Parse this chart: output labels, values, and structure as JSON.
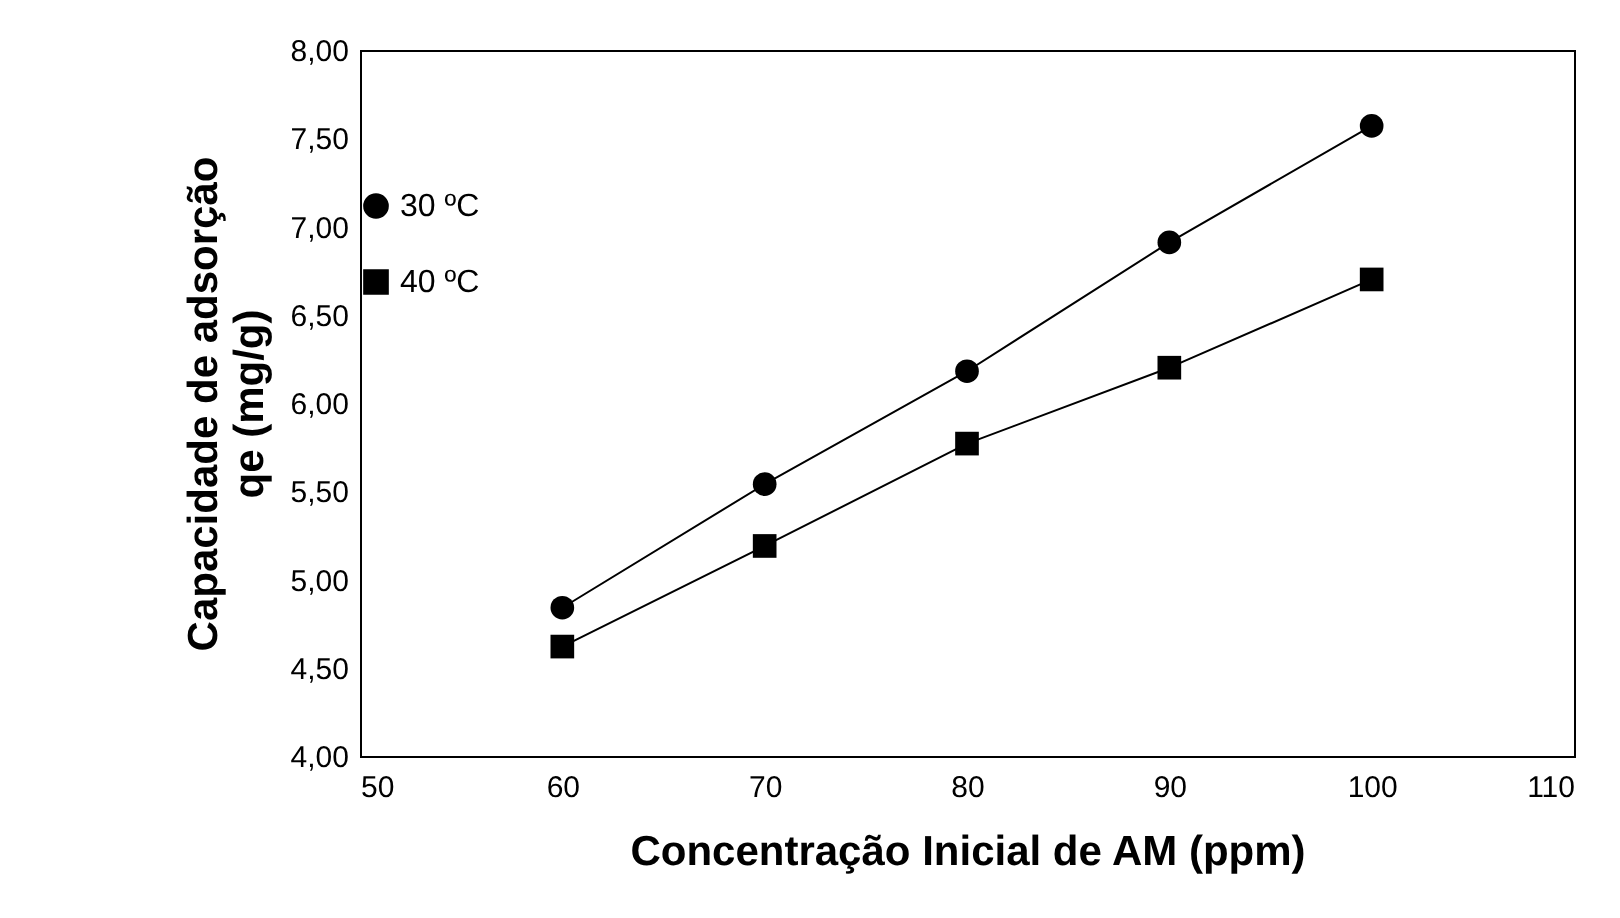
{
  "chart_data": {
    "type": "line",
    "xlabel": "Concentração Inicial de AM (ppm)",
    "ylabel": "Capacidade de adsorção\nqe (mg/g)",
    "x": [
      60,
      70,
      80,
      90,
      100
    ],
    "series": [
      {
        "name": "30 ºC",
        "color": "#000000",
        "marker": "circle",
        "values": [
          4.84,
          5.54,
          6.18,
          6.91,
          7.57
        ]
      },
      {
        "name": "40 ºC",
        "color": "#000000",
        "marker": "square",
        "values": [
          4.62,
          5.19,
          5.77,
          6.2,
          6.7
        ]
      }
    ],
    "xlim": [
      50,
      110
    ],
    "xticks": [
      50,
      60,
      70,
      80,
      90,
      100,
      110
    ],
    "ylim": [
      4,
      8
    ],
    "yticks": [
      {
        "value": 4,
        "label": "4,00"
      },
      {
        "value": 4.5,
        "label": "4,50"
      },
      {
        "value": 5,
        "label": "5,00"
      },
      {
        "value": 5.5,
        "label": "5,50"
      },
      {
        "value": 6,
        "label": "6,00"
      },
      {
        "value": 6.5,
        "label": "6,50"
      },
      {
        "value": 7,
        "label": "7,00"
      },
      {
        "value": 7.5,
        "label": "7,50"
      },
      {
        "value": 8,
        "label": "8,00"
      }
    ],
    "grid": false,
    "legend": "top left",
    "line_style": "solid"
  }
}
